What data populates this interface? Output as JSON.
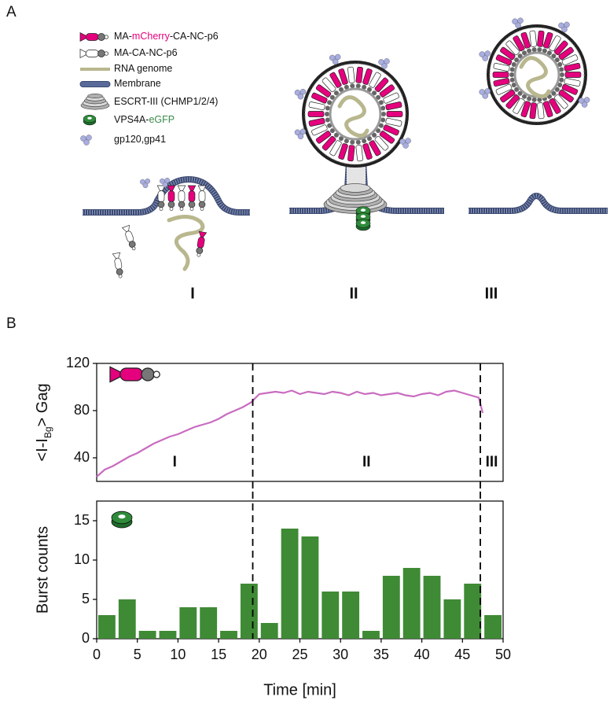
{
  "panel_a": {
    "label": "A",
    "legend": [
      {
        "parts": [
          "MA-",
          "mCherry",
          "-CA-NC-p6"
        ],
        "highlight": "#e5007d"
      },
      {
        "parts": [
          "MA-CA-NC-p6"
        ]
      },
      {
        "parts": [
          "RNA genome"
        ]
      },
      {
        "parts": [
          "Membrane"
        ]
      },
      {
        "parts": [
          "ESCRT-III (CHMP1/2/4)"
        ]
      },
      {
        "parts": [
          "VPS4A-",
          "eGFP"
        ],
        "highlight": "#3a8a4a"
      },
      {
        "parts": [
          "gp120,gp41"
        ]
      }
    ],
    "stages": [
      "I",
      "II",
      "III"
    ]
  },
  "panel_b": {
    "label": "B"
  },
  "chart_data": [
    {
      "type": "line",
      "y_label_parts": [
        "<I-I",
        "Bg",
        "> Gag"
      ],
      "x": [
        0,
        1,
        2,
        3,
        4,
        5,
        6,
        7,
        8,
        9,
        10,
        11,
        12,
        13,
        14,
        15,
        16,
        17,
        18,
        19,
        20,
        21,
        22,
        23,
        24,
        25,
        26,
        27,
        28,
        29,
        30,
        31,
        32,
        33,
        34,
        35,
        36,
        37,
        38,
        39,
        40,
        41,
        42,
        43,
        44,
        45,
        46,
        47,
        47.5
      ],
      "series": [
        {
          "color": "#c96cc0",
          "values": [
            24,
            30,
            33,
            37,
            41,
            44,
            48,
            52,
            55,
            58,
            60,
            63,
            66,
            68,
            70,
            73,
            77,
            80,
            83,
            87,
            94,
            95,
            96,
            95,
            97,
            94,
            96,
            95,
            94,
            96,
            95,
            93,
            96,
            94,
            95,
            93,
            94,
            95,
            93,
            92,
            94,
            95,
            93,
            96,
            97,
            95,
            93,
            91,
            78
          ]
        }
      ],
      "xlim": [
        0,
        50
      ],
      "ylim": [
        20,
        120
      ],
      "yticks": [
        40,
        80,
        120
      ],
      "vlines": [
        19.2,
        47.2
      ],
      "region_labels": [
        "I",
        "II",
        "III"
      ]
    },
    {
      "type": "histogram",
      "y_label": "Burst counts",
      "x_label": "Time [min]",
      "bins": [
        0,
        2.5,
        5,
        7.5,
        10,
        12.5,
        15,
        17.5,
        20,
        22.5,
        25,
        27.5,
        30,
        32.5,
        35,
        37.5,
        40,
        42.5,
        45,
        47.5,
        50
      ],
      "counts": [
        3,
        5,
        1,
        1,
        4,
        4,
        1,
        7,
        2,
        14,
        13,
        6,
        6,
        1,
        8,
        9,
        8,
        5,
        7,
        3
      ],
      "color": "#3f8a35",
      "xlim": [
        0,
        50
      ],
      "ylim": [
        0,
        17.5
      ],
      "yticks": [
        0,
        5,
        10,
        15
      ],
      "xticks": [
        0,
        5,
        10,
        15,
        20,
        25,
        30,
        35,
        40,
        45,
        50
      ],
      "vlines": [
        19.2,
        47.2
      ]
    }
  ]
}
